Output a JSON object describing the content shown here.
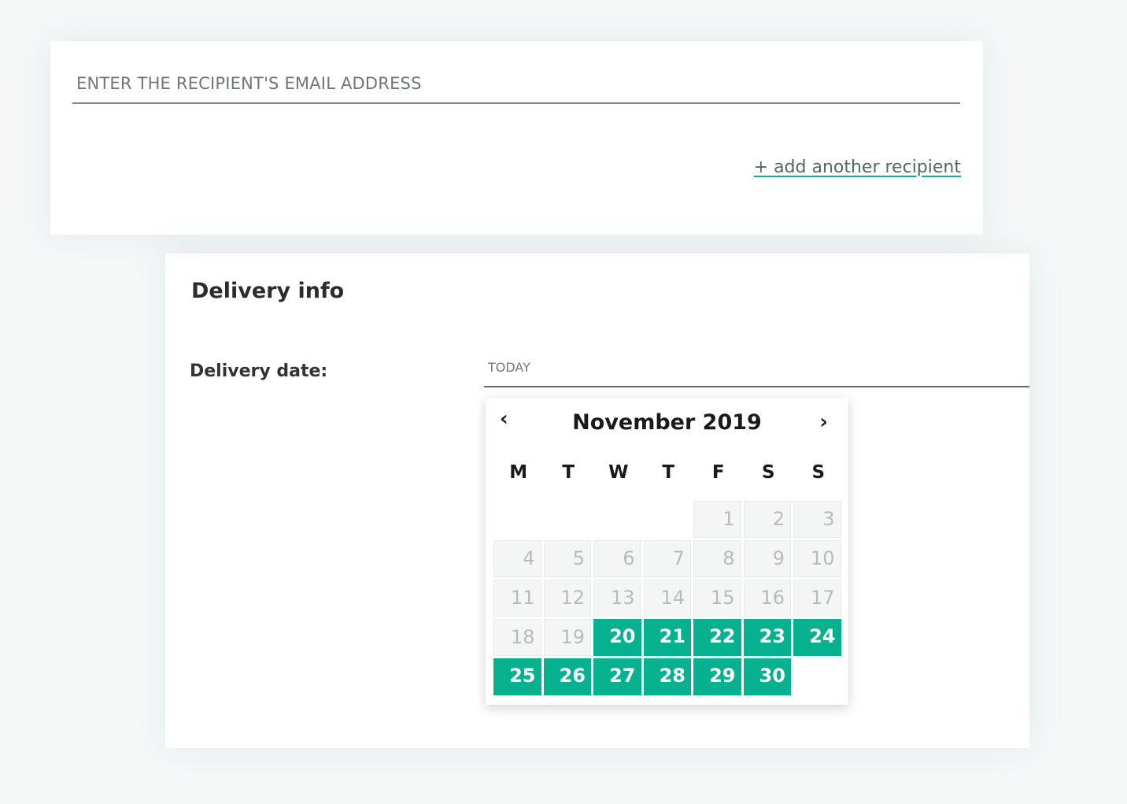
{
  "recipient": {
    "email_placeholder": "ENTER THE RECIPIENT'S EMAIL ADDRESS",
    "email_value": "",
    "add_link": "+ add another recipient"
  },
  "delivery": {
    "heading": "Delivery info",
    "date_label": "Delivery date:",
    "date_placeholder": "TODAY",
    "calendar": {
      "month_label": "November 2019",
      "prev_icon": "chevron-left-icon",
      "next_icon": "chevron-right-icon",
      "weekdays": [
        "M",
        "T",
        "W",
        "T",
        "F",
        "S",
        "S"
      ],
      "first_weekday_index": 4,
      "days": [
        {
          "n": "1",
          "state": "disabled"
        },
        {
          "n": "2",
          "state": "disabled"
        },
        {
          "n": "3",
          "state": "disabled"
        },
        {
          "n": "4",
          "state": "disabled"
        },
        {
          "n": "5",
          "state": "disabled"
        },
        {
          "n": "6",
          "state": "disabled"
        },
        {
          "n": "7",
          "state": "disabled"
        },
        {
          "n": "8",
          "state": "disabled"
        },
        {
          "n": "9",
          "state": "disabled"
        },
        {
          "n": "10",
          "state": "disabled"
        },
        {
          "n": "11",
          "state": "disabled"
        },
        {
          "n": "12",
          "state": "disabled"
        },
        {
          "n": "13",
          "state": "disabled"
        },
        {
          "n": "14",
          "state": "disabled"
        },
        {
          "n": "15",
          "state": "disabled"
        },
        {
          "n": "16",
          "state": "disabled"
        },
        {
          "n": "17",
          "state": "disabled"
        },
        {
          "n": "18",
          "state": "disabled"
        },
        {
          "n": "19",
          "state": "disabled"
        },
        {
          "n": "20",
          "state": "available"
        },
        {
          "n": "21",
          "state": "available"
        },
        {
          "n": "22",
          "state": "available"
        },
        {
          "n": "23",
          "state": "available"
        },
        {
          "n": "24",
          "state": "available"
        },
        {
          "n": "25",
          "state": "available"
        },
        {
          "n": "26",
          "state": "available"
        },
        {
          "n": "27",
          "state": "available"
        },
        {
          "n": "28",
          "state": "available"
        },
        {
          "n": "29",
          "state": "available"
        },
        {
          "n": "30",
          "state": "available"
        }
      ]
    }
  },
  "colors": {
    "accent": "#06b18f",
    "disabled_bg": "#f4f5f5",
    "disabled_text": "#b5bdbb"
  }
}
